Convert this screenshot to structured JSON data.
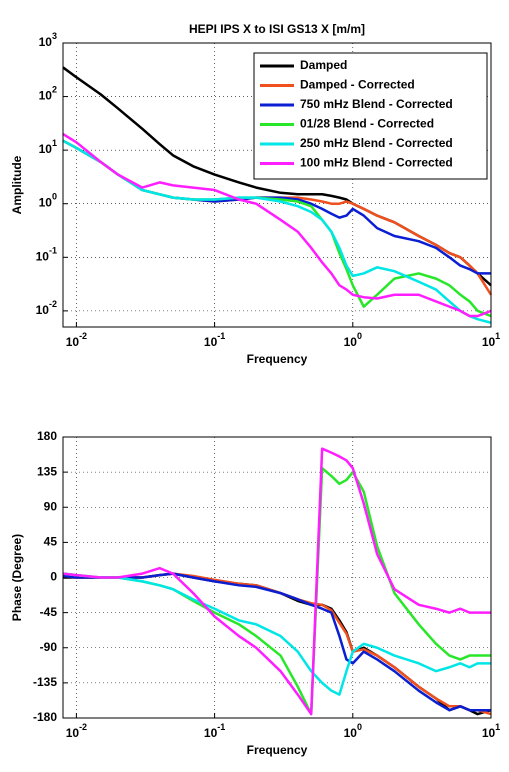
{
  "chart_data": [
    {
      "type": "line",
      "title": "HEPI IPS X to ISI GS13 X [m/m]",
      "x_label": "Frequency",
      "y_label": "Amplitude",
      "xscale": "log",
      "yscale": "log",
      "grid": true,
      "legend": "upper right",
      "xlim": [
        0.008,
        10
      ],
      "ylim": [
        0.005,
        1000
      ],
      "xticks": [
        {
          "value": 0.01,
          "label": "10",
          "exponent": "-2"
        },
        {
          "value": 0.1,
          "label": "10",
          "exponent": "-1"
        },
        {
          "value": 1,
          "label": "10",
          "exponent": "0"
        },
        {
          "value": 10,
          "label": "10",
          "exponent": "1"
        }
      ],
      "yticks": [
        {
          "value": 0.01,
          "label": "10",
          "exponent": "-2"
        },
        {
          "value": 0.1,
          "label": "10",
          "exponent": "-1"
        },
        {
          "value": 1,
          "label": "10",
          "exponent": "0"
        },
        {
          "value": 10,
          "label": "10",
          "exponent": "1"
        },
        {
          "value": 100,
          "label": "10",
          "exponent": "2"
        },
        {
          "value": 1000,
          "label": "10",
          "exponent": "3"
        }
      ],
      "x": [
        0.008,
        0.01,
        0.015,
        0.02,
        0.03,
        0.04,
        0.05,
        0.07,
        0.1,
        0.15,
        0.2,
        0.3,
        0.4,
        0.5,
        0.6,
        0.7,
        0.8,
        0.9,
        1.0,
        1.2,
        1.5,
        2,
        3,
        4,
        5,
        6,
        7,
        8,
        10
      ],
      "series": [
        {
          "name": "Damped",
          "color": "#000000",
          "values": [
            350,
            230,
            110,
            60,
            25,
            13,
            8,
            5,
            3.5,
            2.5,
            2,
            1.6,
            1.5,
            1.5,
            1.5,
            1.4,
            1.3,
            1.2,
            1.0,
            0.8,
            0.6,
            0.45,
            0.25,
            0.17,
            0.12,
            0.1,
            0.07,
            0.05,
            0.03
          ]
        },
        {
          "name": "Damped - Corrected",
          "color": "#f0501e",
          "values": [
            15,
            11,
            6,
            3.5,
            1.8,
            1.5,
            1.3,
            1.2,
            1.1,
            1.2,
            1.3,
            1.3,
            1.3,
            1.2,
            1.1,
            1.0,
            1.0,
            1.1,
            1.0,
            0.8,
            0.6,
            0.45,
            0.25,
            0.17,
            0.12,
            0.1,
            0.07,
            0.05,
            0.02
          ]
        },
        {
          "name": "750 mHz Blend - Corrected",
          "color": "#0a1ed2",
          "values": [
            15,
            11,
            6,
            3.5,
            1.8,
            1.5,
            1.3,
            1.2,
            1.1,
            1.2,
            1.3,
            1.3,
            1.2,
            1.0,
            0.8,
            0.65,
            0.55,
            0.6,
            0.8,
            0.6,
            0.35,
            0.25,
            0.2,
            0.15,
            0.1,
            0.07,
            0.06,
            0.05,
            0.05
          ]
        },
        {
          "name": "01/28 Blend - Corrected",
          "color": "#28e628",
          "values": [
            15,
            11,
            6,
            3.5,
            1.8,
            1.5,
            1.3,
            1.2,
            1.2,
            1.3,
            1.3,
            1.2,
            1.1,
            0.9,
            0.5,
            0.3,
            0.12,
            0.06,
            0.03,
            0.012,
            0.02,
            0.04,
            0.05,
            0.04,
            0.03,
            0.02,
            0.015,
            0.01,
            0.008
          ]
        },
        {
          "name": "250 mHz Blend - Corrected",
          "color": "#00e6e6",
          "values": [
            15,
            11,
            6,
            3.5,
            1.8,
            1.5,
            1.3,
            1.2,
            1.2,
            1.3,
            1.3,
            1.1,
            0.9,
            0.7,
            0.5,
            0.3,
            0.15,
            0.07,
            0.045,
            0.05,
            0.065,
            0.055,
            0.035,
            0.025,
            0.015,
            0.01,
            0.008,
            0.007,
            0.006
          ]
        },
        {
          "name": "100 mHz Blend - Corrected",
          "color": "#ff1eff",
          "values": [
            20,
            14,
            6,
            3.5,
            2,
            2.5,
            2.2,
            2,
            1.8,
            1.2,
            1.0,
            0.5,
            0.3,
            0.15,
            0.08,
            0.05,
            0.03,
            0.025,
            0.02,
            0.018,
            0.017,
            0.02,
            0.02,
            0.015,
            0.012,
            0.01,
            0.008,
            0.008,
            0.01
          ]
        }
      ]
    },
    {
      "type": "line",
      "x_label": "Frequency",
      "y_label": "Phase (Degree)",
      "xscale": "log",
      "yscale": "linear",
      "grid": true,
      "xlim": [
        0.008,
        10
      ],
      "ylim": [
        -180,
        180
      ],
      "xticks": [
        {
          "value": 0.01,
          "label": "10",
          "exponent": "-2"
        },
        {
          "value": 0.1,
          "label": "10",
          "exponent": "-1"
        },
        {
          "value": 1,
          "label": "10",
          "exponent": "0"
        },
        {
          "value": 10,
          "label": "10",
          "exponent": "1"
        }
      ],
      "yticks": [
        -180,
        -135,
        -90,
        -45,
        0,
        45,
        90,
        135,
        180
      ],
      "x": [
        0.008,
        0.01,
        0.015,
        0.02,
        0.03,
        0.04,
        0.05,
        0.07,
        0.1,
        0.15,
        0.2,
        0.3,
        0.4,
        0.5,
        0.6,
        0.7,
        0.8,
        0.9,
        1.0,
        1.2,
        1.5,
        2,
        3,
        4,
        5,
        6,
        7,
        8,
        10
      ],
      "series": [
        {
          "name": "Damped",
          "color": "#000000",
          "values": [
            0,
            0,
            0,
            0,
            0,
            3,
            5,
            0,
            -5,
            -8,
            -10,
            -20,
            -30,
            -35,
            -35,
            -40,
            -55,
            -70,
            -95,
            -90,
            -100,
            -115,
            -140,
            -155,
            -170,
            -165,
            -170,
            -175,
            -170
          ]
        },
        {
          "name": "Damped - Corrected",
          "color": "#f0501e",
          "values": [
            2,
            0,
            0,
            0,
            0,
            3,
            5,
            2,
            -3,
            -8,
            -10,
            -20,
            -28,
            -33,
            -35,
            -42,
            -58,
            -72,
            -95,
            -92,
            -100,
            -115,
            -140,
            -155,
            -165,
            -165,
            -170,
            -170,
            -175
          ]
        },
        {
          "name": "750 mHz Blend - Corrected",
          "color": "#0a1ed2",
          "values": [
            2,
            0,
            0,
            0,
            0,
            3,
            5,
            0,
            -5,
            -10,
            -12,
            -20,
            -28,
            -35,
            -40,
            -45,
            -75,
            -105,
            -110,
            -95,
            -105,
            -120,
            -145,
            -160,
            -170,
            -165,
            -170,
            -170,
            -170
          ]
        },
        {
          "name": "01/28 Blend - Corrected",
          "color": "#28e628",
          "values": [
            5,
            3,
            0,
            0,
            -5,
            -10,
            -15,
            -30,
            -45,
            -60,
            -75,
            -100,
            -140,
            -175,
            140,
            130,
            120,
            125,
            135,
            110,
            40,
            -20,
            -60,
            -85,
            -100,
            -105,
            -100,
            -100,
            -100
          ]
        },
        {
          "name": "250 mHz Blend - Corrected",
          "color": "#00e6e6",
          "values": [
            5,
            3,
            0,
            0,
            -5,
            -10,
            -15,
            -28,
            -40,
            -55,
            -60,
            -75,
            -95,
            -120,
            -135,
            -145,
            -150,
            -120,
            -95,
            -85,
            -90,
            -100,
            -110,
            -120,
            -115,
            -110,
            -115,
            -110,
            -110
          ]
        },
        {
          "name": "100 mHz Blend - Corrected",
          "color": "#ff1eff",
          "values": [
            5,
            3,
            0,
            0,
            5,
            12,
            5,
            -20,
            -50,
            -75,
            -90,
            -120,
            -150,
            -175,
            165,
            160,
            155,
            150,
            140,
            95,
            30,
            -15,
            -35,
            -40,
            -45,
            -40,
            -45,
            -45,
            -45
          ]
        }
      ]
    }
  ]
}
